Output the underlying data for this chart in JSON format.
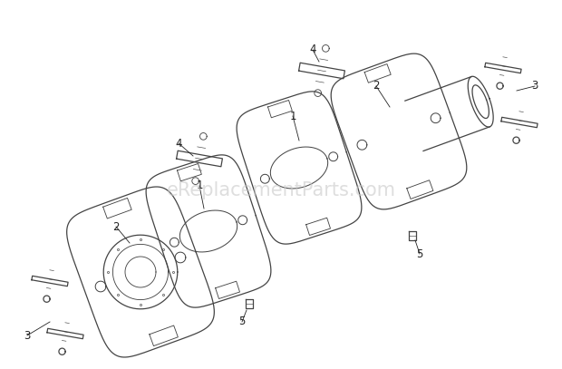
{
  "bg_color": "#ffffff",
  "watermark": "eReplacementParts.com",
  "watermark_color": "#c8c8c8",
  "watermark_fontsize": 15,
  "line_color": "#444444",
  "label_color": "#222222",
  "label_fontsize": 8.5,
  "figsize": [
    6.2,
    4.07
  ],
  "dpi": 100
}
